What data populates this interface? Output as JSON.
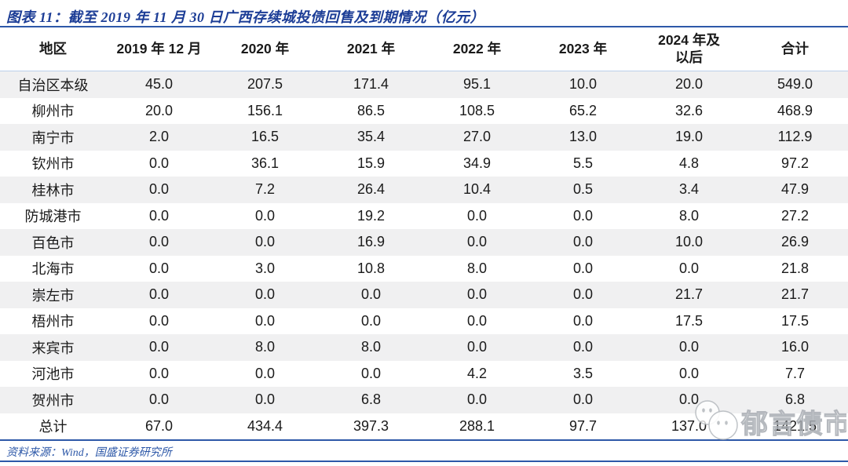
{
  "figure": {
    "title": "图表 11：截至 2019 年 11 月 30 日广西存续城投债回售及到期情况（亿元）",
    "source": "资料来源：Wind，国盛证券研究所",
    "watermark_text": "郁言债市"
  },
  "table": {
    "columns": [
      "地区",
      "2019 年 12 月",
      "2020 年",
      "2021 年",
      "2022 年",
      "2023 年",
      "2024 年及\n以后",
      "合计"
    ],
    "rows": [
      {
        "region": "自治区本级",
        "values": [
          "45.0",
          "207.5",
          "171.4",
          "95.1",
          "10.0",
          "20.0",
          "549.0"
        ]
      },
      {
        "region": "柳州市",
        "values": [
          "20.0",
          "156.1",
          "86.5",
          "108.5",
          "65.2",
          "32.6",
          "468.9"
        ]
      },
      {
        "region": "南宁市",
        "values": [
          "2.0",
          "16.5",
          "35.4",
          "27.0",
          "13.0",
          "19.0",
          "112.9"
        ]
      },
      {
        "region": "钦州市",
        "values": [
          "0.0",
          "36.1",
          "15.9",
          "34.9",
          "5.5",
          "4.8",
          "97.2"
        ]
      },
      {
        "region": "桂林市",
        "values": [
          "0.0",
          "7.2",
          "26.4",
          "10.4",
          "0.5",
          "3.4",
          "47.9"
        ]
      },
      {
        "region": "防城港市",
        "values": [
          "0.0",
          "0.0",
          "19.2",
          "0.0",
          "0.0",
          "8.0",
          "27.2"
        ]
      },
      {
        "region": "百色市",
        "values": [
          "0.0",
          "0.0",
          "16.9",
          "0.0",
          "0.0",
          "10.0",
          "26.9"
        ]
      },
      {
        "region": "北海市",
        "values": [
          "0.0",
          "3.0",
          "10.8",
          "8.0",
          "0.0",
          "0.0",
          "21.8"
        ]
      },
      {
        "region": "崇左市",
        "values": [
          "0.0",
          "0.0",
          "0.0",
          "0.0",
          "0.0",
          "21.7",
          "21.7"
        ]
      },
      {
        "region": "梧州市",
        "values": [
          "0.0",
          "0.0",
          "0.0",
          "0.0",
          "0.0",
          "17.5",
          "17.5"
        ]
      },
      {
        "region": "来宾市",
        "values": [
          "0.0",
          "8.0",
          "8.0",
          "0.0",
          "0.0",
          "0.0",
          "16.0"
        ]
      },
      {
        "region": "河池市",
        "values": [
          "0.0",
          "0.0",
          "0.0",
          "4.2",
          "3.5",
          "0.0",
          "7.7"
        ]
      },
      {
        "region": "贺州市",
        "values": [
          "0.0",
          "0.0",
          "6.8",
          "0.0",
          "0.0",
          "0.0",
          "6.8"
        ]
      },
      {
        "region": "总计",
        "values": [
          "67.0",
          "434.4",
          "397.3",
          "288.1",
          "97.7",
          "137.0",
          "1421.5"
        ]
      }
    ]
  },
  "colors": {
    "title_blue": "#1c3d96",
    "rule_blue": "#2d58a8",
    "header_underline": "#bcd0ea",
    "stripe_gray": "#f0f0f1",
    "text_black": "#1a1a1a",
    "source_blue": "#2d58a8",
    "watermark_gray": "#9aa0a6"
  }
}
